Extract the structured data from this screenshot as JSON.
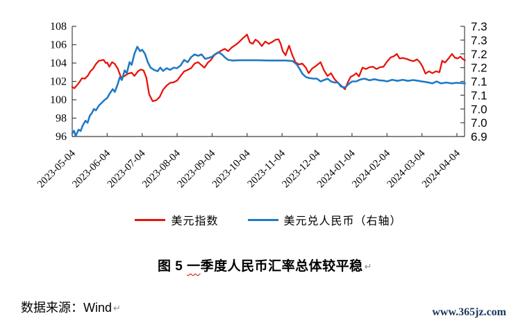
{
  "chart_data": {
    "type": "line",
    "title": "",
    "x_tick_labels": [
      "2023-05-04",
      "2023-06-04",
      "2023-07-04",
      "2023-08-04",
      "2023-09-04",
      "2023-10-04",
      "2023-11-04",
      "2023-12-04",
      "2024-01-04",
      "2024-02-04",
      "2024-03-04",
      "2024-04-04"
    ],
    "x_unit": "months since 2023-05-04",
    "left_axis": {
      "min": 96,
      "max": 108,
      "tick_labels": [
        "96",
        "98",
        "100",
        "102",
        "104",
        "106",
        "108"
      ]
    },
    "right_axis": {
      "min": 6.9,
      "max": 7.3,
      "tick_labels": [
        "6.9",
        "7.0",
        "7.0",
        "7.1",
        "7.1",
        "7.2",
        "7.2",
        "7.3",
        "7.3"
      ]
    },
    "grid": false,
    "legend_position": "bottom",
    "axis_color": "#3f3f3f",
    "series": [
      {
        "name": "美元指数",
        "axis": "left",
        "color": "#e8130c",
        "stroke_width": 2.3,
        "points": [
          [
            0,
            101.4
          ],
          [
            0.06,
            101.25
          ],
          [
            0.12,
            101.5
          ],
          [
            0.2,
            101.9
          ],
          [
            0.28,
            102.35
          ],
          [
            0.36,
            102.3
          ],
          [
            0.44,
            102.6
          ],
          [
            0.52,
            103.1
          ],
          [
            0.6,
            103.4
          ],
          [
            0.68,
            103.9
          ],
          [
            0.76,
            104.25
          ],
          [
            0.84,
            104.3
          ],
          [
            0.9,
            104.35
          ],
          [
            0.96,
            104.0
          ],
          [
            1.0,
            104.05
          ],
          [
            1.06,
            103.6
          ],
          [
            1.14,
            104.1
          ],
          [
            1.22,
            103.9
          ],
          [
            1.3,
            103.4
          ],
          [
            1.4,
            102.4
          ],
          [
            1.5,
            102.6
          ],
          [
            1.6,
            102.85
          ],
          [
            1.7,
            102.95
          ],
          [
            1.78,
            102.6
          ],
          [
            1.88,
            103.1
          ],
          [
            1.96,
            103.3
          ],
          [
            2.04,
            103.2
          ],
          [
            2.12,
            102.4
          ],
          [
            2.2,
            100.6
          ],
          [
            2.3,
            99.85
          ],
          [
            2.4,
            99.95
          ],
          [
            2.5,
            100.3
          ],
          [
            2.6,
            101.1
          ],
          [
            2.7,
            101.55
          ],
          [
            2.8,
            101.85
          ],
          [
            2.9,
            101.9
          ],
          [
            3.0,
            102.1
          ],
          [
            3.1,
            102.6
          ],
          [
            3.2,
            103.1
          ],
          [
            3.3,
            103.25
          ],
          [
            3.4,
            103.45
          ],
          [
            3.5,
            103.95
          ],
          [
            3.6,
            104.1
          ],
          [
            3.7,
            103.75
          ],
          [
            3.78,
            103.5
          ],
          [
            3.88,
            104.05
          ],
          [
            3.96,
            104.3
          ],
          [
            4.06,
            104.85
          ],
          [
            4.16,
            105.1
          ],
          [
            4.26,
            105.35
          ],
          [
            4.36,
            105.55
          ],
          [
            4.46,
            105.3
          ],
          [
            4.56,
            105.7
          ],
          [
            4.66,
            105.95
          ],
          [
            4.76,
            106.25
          ],
          [
            4.88,
            106.7
          ],
          [
            5.0,
            107.1
          ],
          [
            5.08,
            106.25
          ],
          [
            5.16,
            106.1
          ],
          [
            5.24,
            106.55
          ],
          [
            5.32,
            106.35
          ],
          [
            5.42,
            105.85
          ],
          [
            5.52,
            106.35
          ],
          [
            5.62,
            106.1
          ],
          [
            5.72,
            106.3
          ],
          [
            5.82,
            106.55
          ],
          [
            5.9,
            106.6
          ],
          [
            5.96,
            106.1
          ],
          [
            6.02,
            105.3
          ],
          [
            6.1,
            104.85
          ],
          [
            6.2,
            105.9
          ],
          [
            6.28,
            105.0
          ],
          [
            6.38,
            104.1
          ],
          [
            6.48,
            103.85
          ],
          [
            6.58,
            103.95
          ],
          [
            6.68,
            103.5
          ],
          [
            6.76,
            102.9
          ],
          [
            6.86,
            103.4
          ],
          [
            6.94,
            103.6
          ],
          [
            7.02,
            103.85
          ],
          [
            7.1,
            104.1
          ],
          [
            7.2,
            103.2
          ],
          [
            7.3,
            102.6
          ],
          [
            7.4,
            102.9
          ],
          [
            7.5,
            102.25
          ],
          [
            7.6,
            101.85
          ],
          [
            7.7,
            101.5
          ],
          [
            7.8,
            101.15
          ],
          [
            7.88,
            101.9
          ],
          [
            7.96,
            102.5
          ],
          [
            8.04,
            102.65
          ],
          [
            8.12,
            102.9
          ],
          [
            8.2,
            102.55
          ],
          [
            8.3,
            103.5
          ],
          [
            8.4,
            103.35
          ],
          [
            8.5,
            103.55
          ],
          [
            8.6,
            103.6
          ],
          [
            8.7,
            103.35
          ],
          [
            8.8,
            103.55
          ],
          [
            8.9,
            103.6
          ],
          [
            9.0,
            104.15
          ],
          [
            9.1,
            104.6
          ],
          [
            9.2,
            104.75
          ],
          [
            9.28,
            105.0
          ],
          [
            9.36,
            104.5
          ],
          [
            9.46,
            104.55
          ],
          [
            9.56,
            104.45
          ],
          [
            9.66,
            104.3
          ],
          [
            9.76,
            104.2
          ],
          [
            9.86,
            104.4
          ],
          [
            9.94,
            104.1
          ],
          [
            10.02,
            103.6
          ],
          [
            10.1,
            102.85
          ],
          [
            10.2,
            103.1
          ],
          [
            10.3,
            102.9
          ],
          [
            10.4,
            103.1
          ],
          [
            10.5,
            103.0
          ],
          [
            10.58,
            104.25
          ],
          [
            10.66,
            104.05
          ],
          [
            10.76,
            104.5
          ],
          [
            10.86,
            105.0
          ],
          [
            10.94,
            104.6
          ],
          [
            11.02,
            104.5
          ],
          [
            11.1,
            104.7
          ],
          [
            11.16,
            104.45
          ],
          [
            11.23,
            104.3
          ]
        ]
      },
      {
        "name": "美元兑人民币（右轴）",
        "axis": "right",
        "color": "#1f7ac4",
        "stroke_width": 2.6,
        "points": [
          [
            0,
            6.912
          ],
          [
            0.05,
            6.921
          ],
          [
            0.1,
            6.902
          ],
          [
            0.18,
            6.925
          ],
          [
            0.24,
            6.92
          ],
          [
            0.3,
            6.94
          ],
          [
            0.38,
            6.957
          ],
          [
            0.44,
            6.95
          ],
          [
            0.5,
            6.975
          ],
          [
            0.56,
            6.985
          ],
          [
            0.62,
            7.0
          ],
          [
            0.68,
            6.995
          ],
          [
            0.76,
            7.012
          ],
          [
            0.84,
            7.022
          ],
          [
            0.92,
            7.032
          ],
          [
            1.0,
            7.04
          ],
          [
            1.08,
            7.058
          ],
          [
            1.16,
            7.072
          ],
          [
            1.22,
            7.062
          ],
          [
            1.3,
            7.09
          ],
          [
            1.36,
            7.115
          ],
          [
            1.42,
            7.105
          ],
          [
            1.5,
            7.14
          ],
          [
            1.56,
            7.13
          ],
          [
            1.64,
            7.17
          ],
          [
            1.7,
            7.16
          ],
          [
            1.78,
            7.2
          ],
          [
            1.86,
            7.226
          ],
          [
            1.94,
            7.21
          ],
          [
            2.0,
            7.215
          ],
          [
            2.08,
            7.2
          ],
          [
            2.16,
            7.17
          ],
          [
            2.24,
            7.15
          ],
          [
            2.34,
            7.142
          ],
          [
            2.44,
            7.137
          ],
          [
            2.52,
            7.15
          ],
          [
            2.6,
            7.138
          ],
          [
            2.7,
            7.148
          ],
          [
            2.8,
            7.142
          ],
          [
            2.9,
            7.15
          ],
          [
            3.0,
            7.148
          ],
          [
            3.1,
            7.158
          ],
          [
            3.2,
            7.178
          ],
          [
            3.3,
            7.17
          ],
          [
            3.4,
            7.188
          ],
          [
            3.5,
            7.198
          ],
          [
            3.6,
            7.193
          ],
          [
            3.7,
            7.198
          ],
          [
            3.8,
            7.182
          ],
          [
            3.9,
            7.185
          ],
          [
            4.0,
            7.19
          ],
          [
            4.1,
            7.2
          ],
          [
            4.18,
            7.206
          ],
          [
            4.28,
            7.198
          ],
          [
            4.36,
            7.188
          ],
          [
            4.46,
            7.178
          ],
          [
            4.6,
            7.176
          ],
          [
            4.8,
            7.177
          ],
          [
            5.0,
            7.177
          ],
          [
            5.3,
            7.177
          ],
          [
            5.6,
            7.176
          ],
          [
            5.9,
            7.176
          ],
          [
            6.1,
            7.176
          ],
          [
            6.3,
            7.174
          ],
          [
            6.42,
            7.162
          ],
          [
            6.5,
            7.146
          ],
          [
            6.58,
            7.128
          ],
          [
            6.68,
            7.116
          ],
          [
            6.78,
            7.112
          ],
          [
            6.9,
            7.11
          ],
          [
            7.0,
            7.11
          ],
          [
            7.1,
            7.1
          ],
          [
            7.2,
            7.105
          ],
          [
            7.3,
            7.11
          ],
          [
            7.4,
            7.1
          ],
          [
            7.5,
            7.096
          ],
          [
            7.6,
            7.096
          ],
          [
            7.68,
            7.082
          ],
          [
            7.8,
            7.078
          ],
          [
            7.9,
            7.09
          ],
          [
            8.0,
            7.1
          ],
          [
            8.12,
            7.1
          ],
          [
            8.24,
            7.107
          ],
          [
            8.36,
            7.11
          ],
          [
            8.5,
            7.104
          ],
          [
            8.64,
            7.108
          ],
          [
            8.78,
            7.104
          ],
          [
            8.9,
            7.103
          ],
          [
            9.0,
            7.1
          ],
          [
            9.15,
            7.106
          ],
          [
            9.3,
            7.102
          ],
          [
            9.45,
            7.106
          ],
          [
            9.6,
            7.102
          ],
          [
            9.75,
            7.105
          ],
          [
            9.9,
            7.102
          ],
          [
            10.0,
            7.1
          ],
          [
            10.15,
            7.097
          ],
          [
            10.3,
            7.093
          ],
          [
            10.42,
            7.1
          ],
          [
            10.54,
            7.093
          ],
          [
            10.7,
            7.096
          ],
          [
            10.85,
            7.093
          ],
          [
            11.0,
            7.095
          ],
          [
            11.23,
            7.093
          ]
        ]
      }
    ]
  },
  "legend": {
    "items": [
      {
        "label": "美元指数",
        "color": "#e8130c"
      },
      {
        "label": "美元兑人民币（右轴）",
        "color": "#1f7ac4"
      }
    ]
  },
  "caption": {
    "prefix": "图 5 ",
    "flagged": "一",
    "rest": "季度人民币汇率总体较平稳",
    "paragraph_mark": "↵"
  },
  "source": {
    "text": "数据来源：Wind",
    "paragraph_mark": "↵"
  },
  "watermark": "www.365jz.com",
  "colors": {
    "dxy_line": "#e8130c",
    "cny_line": "#1f7ac4",
    "axis": "#3f3f3f",
    "watermark_text": "#17365d",
    "spellcheck_squiggle": "#c00000"
  }
}
